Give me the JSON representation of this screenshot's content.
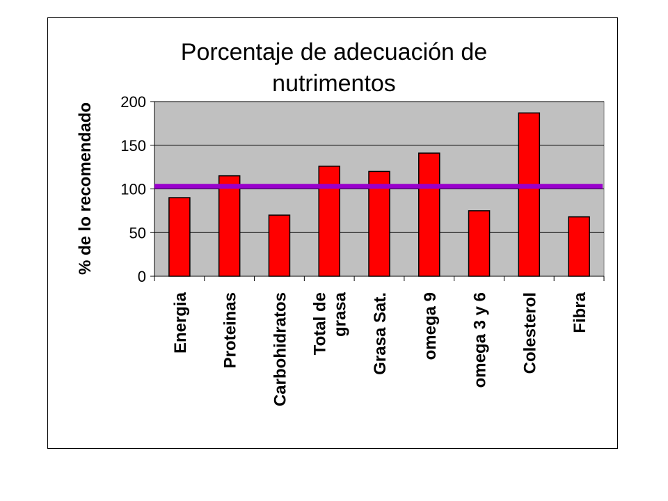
{
  "chart_data": {
    "type": "bar",
    "title": [
      "Porcentaje de adecuación de",
      "nutrimentos"
    ],
    "ylabel": "% de lo recomendado",
    "xlabel": "",
    "ylim": [
      0,
      200
    ],
    "yticks": [
      0,
      50,
      100,
      150,
      200
    ],
    "categories": [
      [
        "Energia"
      ],
      [
        "Proteinas"
      ],
      [
        "Carbohidratos"
      ],
      [
        "Total de",
        "grasa"
      ],
      [
        "Grasa Sat."
      ],
      [
        "omega 9"
      ],
      [
        "omega 3 y 6"
      ],
      [
        "Colesterol"
      ],
      [
        "Fibra"
      ]
    ],
    "values": [
      90,
      115,
      70,
      126,
      120,
      141,
      75,
      187,
      68
    ],
    "reference_line": 103,
    "grid": true,
    "legend": "none",
    "colors": {
      "bar": "#ff0000",
      "reference_line": "#9900cc",
      "plot_background": "#c0c0c0"
    }
  }
}
